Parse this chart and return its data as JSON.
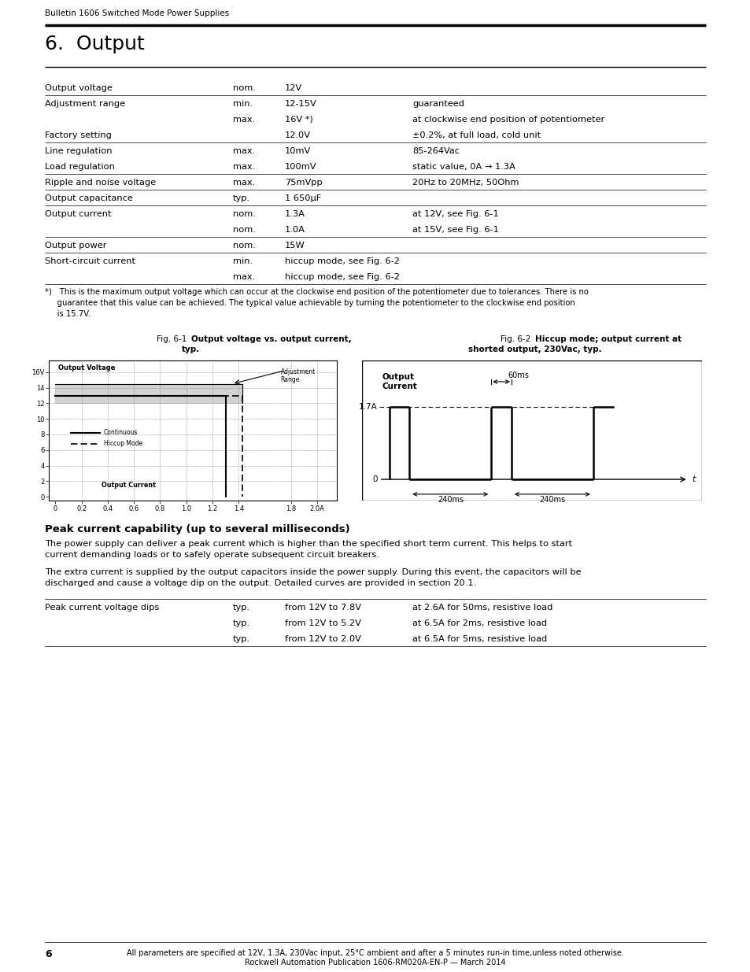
{
  "page_header": "Bulletin 1606 Switched Mode Power Supplies",
  "section_title": "6.  Output",
  "table_rows": [
    {
      "col1": "Output voltage",
      "col2": "nom.",
      "col3": "12V",
      "col4": "",
      "has_top_line": true
    },
    {
      "col1": "Adjustment range",
      "col2": "min.",
      "col3": "12-15V",
      "col4": "guaranteed",
      "has_top_line": true
    },
    {
      "col1": "",
      "col2": "max.",
      "col3": "16V *)",
      "col4": "at clockwise end position of potentiometer",
      "has_top_line": false
    },
    {
      "col1": "Factory setting",
      "col2": "",
      "col3": "12.0V",
      "col4": "±0.2%, at full load, cold unit",
      "has_top_line": false
    },
    {
      "col1": "Line regulation",
      "col2": "max.",
      "col3": "10mV",
      "col4": "85-264Vac",
      "has_top_line": true
    },
    {
      "col1": "Load regulation",
      "col2": "max.",
      "col3": "100mV",
      "col4": "static value, 0A → 1.3A",
      "has_top_line": false
    },
    {
      "col1": "Ripple and noise voltage",
      "col2": "max.",
      "col3": "75mVpp",
      "col4": "20Hz to 20MHz, 50Ohm",
      "has_top_line": true
    },
    {
      "col1": "Output capacitance",
      "col2": "typ.",
      "col3": "1 650μF",
      "col4": "",
      "has_top_line": true
    },
    {
      "col1": "Output current",
      "col2": "nom.",
      "col3": "1.3A",
      "col4": "at 12V, see Fig. 6-1",
      "has_top_line": true
    },
    {
      "col1": "",
      "col2": "nom.",
      "col3": "1.0A",
      "col4": "at 15V, see Fig. 6-1",
      "has_top_line": false
    },
    {
      "col1": "Output power",
      "col2": "nom.",
      "col3": "15W",
      "col4": "",
      "has_top_line": true
    },
    {
      "col1": "Short-circuit current",
      "col2": "min.",
      "col3": "hiccup mode, see Fig. 6-2",
      "col4": "",
      "has_top_line": true
    },
    {
      "col1": "",
      "col2": "max.",
      "col3": "hiccup mode, see Fig. 6-2",
      "col4": "",
      "has_top_line": false
    }
  ],
  "footnote_lines": [
    "*) This is the maximum output voltage which can occur at the clockwise end position of the potentiometer due to tolerances. There is no",
    "     guarantee that this value can be achieved. The typical value achievable by turning the potentiometer to the clockwise end position",
    "     is 15.7V."
  ],
  "fig1_caption_prefix": "Fig. 6-1 ",
  "fig1_caption_bold": "Output voltage vs. output current,",
  "fig1_caption_line2": "typ.",
  "fig2_caption_prefix": "Fig. 6-2 ",
  "fig2_caption_bold": "Hiccup mode; output current at",
  "fig2_caption_line2": "shorted output, 230Vac, typ.",
  "peak_section_title": "Peak current capability (up to several milliseconds)",
  "peak_para1": "The power supply can deliver a peak current which is higher than the specified short term current. This helps to start current demanding loads or to safely operate subsequent circuit breakers.",
  "peak_para2": "The extra current is supplied by the output capacitors inside the power supply. During this event, the capacitors will be discharged and cause a voltage dip on the output. Detailed curves are provided in section 20.1.",
  "peak_table_rows": [
    {
      "col1": "Peak current voltage dips",
      "col2": "typ.",
      "col3": "from 12V to 7.8V",
      "col4": "at 2.6A for 50ms, resistive load",
      "has_top_line": true
    },
    {
      "col1": "",
      "col2": "typ.",
      "col3": "from 12V to 5.2V",
      "col4": "at 6.5A for 2ms, resistive load",
      "has_top_line": false
    },
    {
      "col1": "",
      "col2": "typ.",
      "col3": "from 12V to 2.0V",
      "col4": "at 6.5A for 5ms, resistive load",
      "has_top_line": false
    }
  ],
  "footer_text1": "All parameters are specified at 12V, 1.3A, 230Vac input, 25°C ambient and after a 5 minutes run-in time,unless noted otherwise.",
  "footer_text2": "Rockwell Automation Publication 1606-RM020A-EN-P — March 2014",
  "footer_page": "6"
}
